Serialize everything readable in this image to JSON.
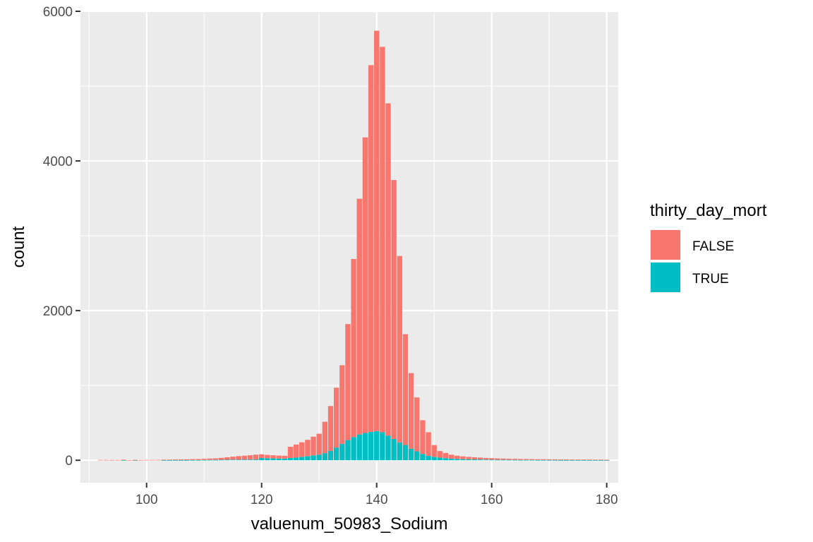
{
  "chart_data": {
    "type": "bar",
    "stacked": true,
    "binwidth": 1,
    "x": [
      92,
      93,
      94,
      95,
      96,
      97,
      98,
      99,
      100,
      101,
      102,
      103,
      104,
      105,
      106,
      107,
      108,
      109,
      110,
      111,
      112,
      113,
      114,
      115,
      116,
      117,
      118,
      119,
      120,
      121,
      122,
      123,
      124,
      125,
      126,
      127,
      128,
      129,
      130,
      131,
      132,
      133,
      134,
      135,
      136,
      137,
      138,
      139,
      140,
      141,
      142,
      143,
      144,
      145,
      146,
      147,
      148,
      149,
      150,
      151,
      152,
      153,
      154,
      155,
      156,
      157,
      158,
      159,
      160,
      161,
      162,
      163,
      164,
      165,
      166,
      167,
      168,
      169,
      170,
      171,
      172,
      173,
      174,
      175,
      176,
      177,
      178,
      179,
      180
    ],
    "series": [
      {
        "name": "FALSE",
        "color": "#F8766D",
        "values": [
          5,
          5,
          4,
          5,
          6,
          3,
          5,
          4,
          5,
          5,
          6,
          7,
          8,
          9,
          10,
          11,
          13,
          14,
          16,
          18,
          21,
          26,
          33,
          40,
          48,
          52,
          58,
          65,
          50,
          45,
          42,
          40,
          38,
          150,
          175,
          195,
          218,
          250,
          280,
          420,
          600,
          800,
          1050,
          1550,
          2380,
          3150,
          3950,
          4900,
          5350,
          5150,
          4440,
          3460,
          2490,
          1480,
          1010,
          720,
          450,
          315,
          158,
          88,
          70,
          52,
          43,
          37,
          32,
          29,
          26,
          23,
          21,
          19,
          17,
          16,
          15,
          14,
          13,
          12,
          11,
          11,
          10,
          10,
          9,
          9,
          8,
          8,
          8,
          7,
          7,
          7,
          6
        ]
      },
      {
        "name": "TRUE",
        "color": "#00BFC4",
        "values": [
          0,
          0,
          0,
          0,
          2,
          0,
          1,
          0,
          0,
          0,
          0,
          1,
          1,
          2,
          2,
          2,
          3,
          3,
          4,
          5,
          5,
          6,
          7,
          8,
          8,
          9,
          9,
          10,
          30,
          27,
          25,
          23,
          22,
          30,
          35,
          45,
          55,
          65,
          75,
          95,
          125,
          170,
          220,
          270,
          310,
          345,
          365,
          380,
          390,
          375,
          330,
          285,
          240,
          205,
          155,
          120,
          85,
          60,
          45,
          35,
          28,
          22,
          18,
          15,
          13,
          11,
          10,
          8,
          7,
          6,
          6,
          5,
          5,
          4,
          4,
          4,
          3,
          3,
          3,
          3,
          2,
          2,
          2,
          2,
          2,
          2,
          1,
          1,
          1
        ]
      }
    ],
    "xlabel": "valuenum_50983_Sodium",
    "ylabel": "count",
    "xlim": [
      88.5,
      182
    ],
    "ylim": [
      -300,
      6000
    ],
    "x_ticks": [
      100,
      120,
      140,
      160,
      180
    ],
    "x_minor_ticks": [
      90,
      110,
      130,
      150,
      170
    ],
    "y_ticks": [
      0,
      2000,
      4000,
      6000
    ],
    "y_minor_ticks": [
      1000,
      3000,
      5000
    ],
    "grid": true,
    "legend": {
      "title": "thirty_day_mort",
      "placement": "right",
      "entries": [
        "FALSE",
        "TRUE"
      ]
    }
  }
}
